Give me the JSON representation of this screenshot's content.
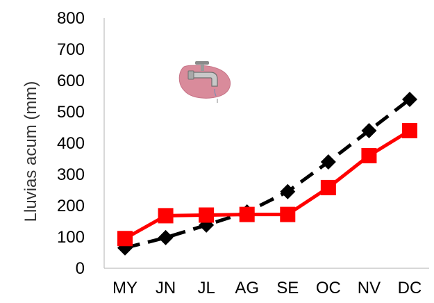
{
  "chart_data": {
    "type": "line",
    "title": "",
    "xlabel": "",
    "ylabel": "Lluvias acum (mm)",
    "categories": [
      "MY",
      "JN",
      "JL",
      "AG",
      "SE",
      "OC",
      "NV",
      "DC"
    ],
    "yticks": [
      "0",
      "100",
      "200",
      "300",
      "400",
      "500",
      "600",
      "700",
      "800"
    ],
    "ylim": [
      0,
      800
    ],
    "grid": false,
    "legend": "none",
    "series": [
      {
        "values": [
          65,
          98,
          138,
          180,
          245,
          340,
          440,
          540
        ],
        "color": "#000000",
        "marker": "diamond",
        "line_style": "dashed"
      },
      {
        "values": [
          95,
          168,
          170,
          172,
          172,
          258,
          360,
          440
        ],
        "color": "#ff0000",
        "marker": "square",
        "line_style": "solid"
      }
    ],
    "decoration_icon": "water-faucet-icon"
  }
}
